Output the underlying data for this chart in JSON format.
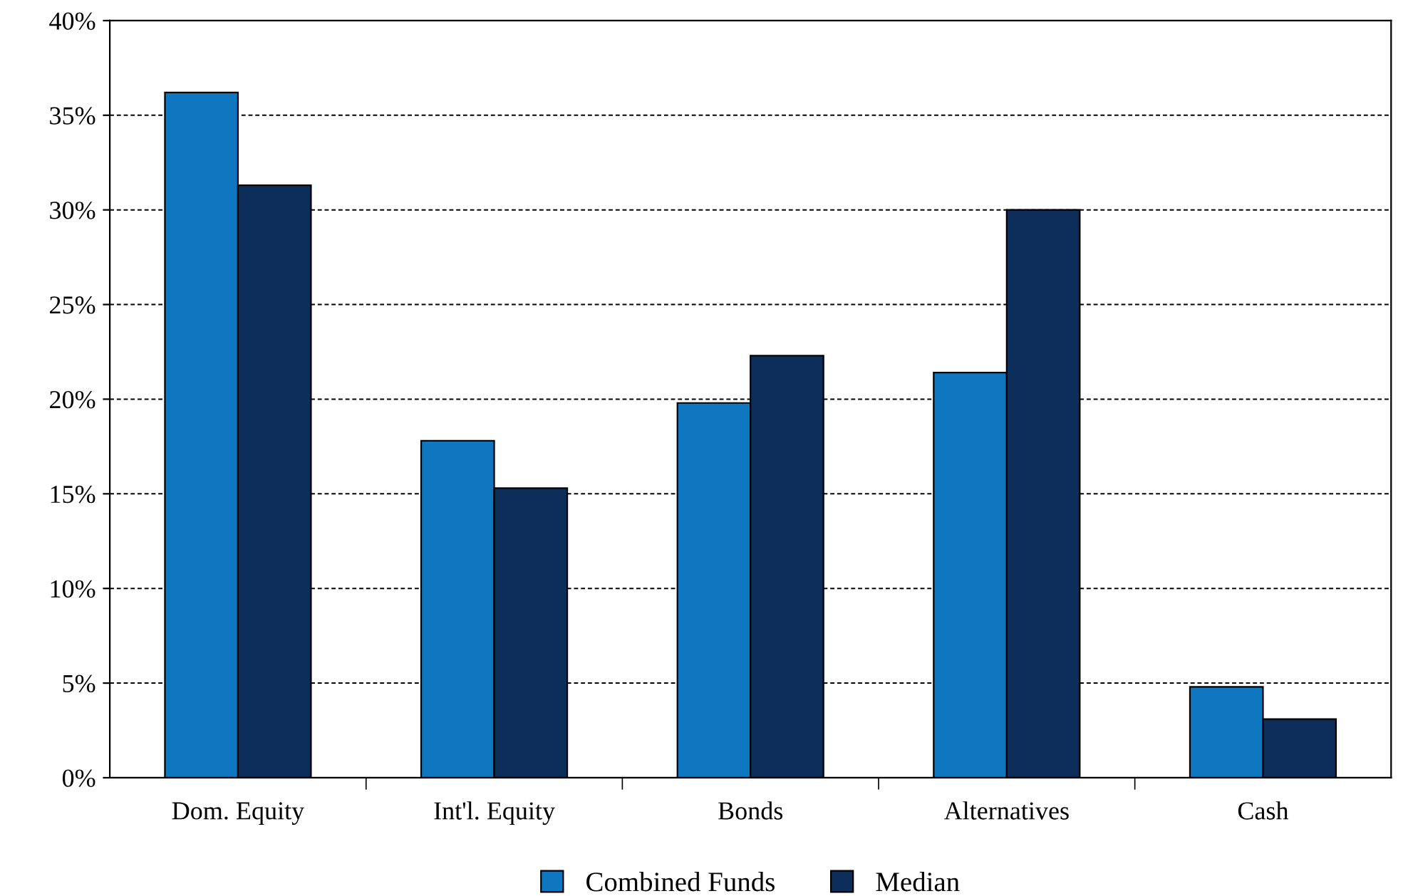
{
  "chart_data": {
    "type": "bar",
    "categories": [
      "Dom. Equity",
      "Int'l. Equity",
      "Bonds",
      "Alternatives",
      "Cash"
    ],
    "series": [
      {
        "name": "Combined Funds",
        "color": "#0e77c0",
        "values": [
          36.2,
          17.8,
          19.8,
          21.4,
          4.8
        ]
      },
      {
        "name": "Median",
        "color": "#0d2d5b",
        "values": [
          31.3,
          15.3,
          22.3,
          30.0,
          3.1
        ]
      }
    ],
    "ylim": [
      0,
      40
    ],
    "yticks": [
      {
        "value": 0,
        "label": "0%"
      },
      {
        "value": 5,
        "label": "5%"
      },
      {
        "value": 10,
        "label": "10%"
      },
      {
        "value": 15,
        "label": "15%"
      },
      {
        "value": 20,
        "label": "20%"
      },
      {
        "value": 25,
        "label": "25%"
      },
      {
        "value": 30,
        "label": "30%"
      },
      {
        "value": 35,
        "label": "35%"
      },
      {
        "value": 40,
        "label": "40%"
      }
    ],
    "grid": "y",
    "legend": "bottom"
  }
}
